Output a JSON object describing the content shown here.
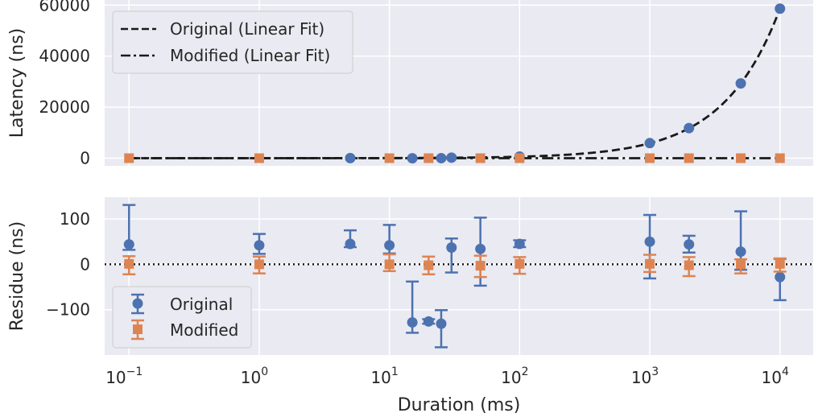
{
  "chart_data": [
    {
      "type": "line",
      "panel": "top",
      "xscale": "log",
      "xlim": [
        0.065,
        18000
      ],
      "ylim": [
        -3000,
        62000
      ],
      "ylabel": "Latency (ns)",
      "yticks": [
        0,
        20000,
        40000,
        60000
      ],
      "ytick_labels": [
        "0",
        "20000",
        "40000",
        "60000"
      ],
      "grid": true,
      "legend_position": "top-left",
      "fit_lines": [
        {
          "name": "Original (Linear Fit)",
          "style": "dashed",
          "color": "#1a1a1a",
          "slope": 5.86,
          "intercept": 0
        },
        {
          "name": "Modified (Linear Fit)",
          "style": "dashdot",
          "color": "#1a1a1a",
          "slope": 0,
          "intercept": 0
        }
      ],
      "series": [
        {
          "name": "Original",
          "marker": "circle",
          "color": "#4c72b0",
          "points": [
            {
              "x": 5,
              "y": 30
            },
            {
              "x": 15,
              "y": -40
            },
            {
              "x": 25,
              "y": 10
            },
            {
              "x": 30,
              "y": 210
            },
            {
              "x": 100,
              "y": 630
            },
            {
              "x": 1000,
              "y": 5900
            },
            {
              "x": 2000,
              "y": 11800
            },
            {
              "x": 5000,
              "y": 29300
            },
            {
              "x": 10000,
              "y": 58600
            }
          ]
        },
        {
          "name": "Modified",
          "marker": "square",
          "color": "#dd8452",
          "points": [
            {
              "x": 0.1,
              "y": 0
            },
            {
              "x": 1,
              "y": 0
            },
            {
              "x": 10,
              "y": 0
            },
            {
              "x": 20,
              "y": 0
            },
            {
              "x": 50,
              "y": 0
            },
            {
              "x": 100,
              "y": 0
            },
            {
              "x": 1000,
              "y": 0
            },
            {
              "x": 2000,
              "y": 0
            },
            {
              "x": 5000,
              "y": 0
            },
            {
              "x": 10000,
              "y": 0
            }
          ]
        }
      ]
    },
    {
      "type": "scatter",
      "panel": "bottom",
      "xscale": "log",
      "xlim": [
        0.065,
        18000
      ],
      "ylim": [
        -200,
        148
      ],
      "xlabel": "Duration (ms)",
      "ylabel": "Residue (ns)",
      "xticks": [
        0.1,
        1,
        10,
        100,
        1000,
        10000
      ],
      "xtick_labels": [
        {
          "base": "10",
          "exp": "−1"
        },
        {
          "base": "10",
          "exp": "0"
        },
        {
          "base": "10",
          "exp": "1"
        },
        {
          "base": "10",
          "exp": "2"
        },
        {
          "base": "10",
          "exp": "3"
        },
        {
          "base": "10",
          "exp": "4"
        }
      ],
      "yticks": [
        -100,
        0,
        100
      ],
      "ytick_labels": [
        "−100",
        "0",
        "100"
      ],
      "zero_line": "dotted",
      "grid": true,
      "legend_position": "bottom-left",
      "series": [
        {
          "name": "Original",
          "marker": "circle",
          "color": "#4c72b0",
          "points": [
            {
              "x": 0.1,
              "y": 44,
              "lo": 32,
              "hi": 131
            },
            {
              "x": 1,
              "y": 42,
              "lo": 23,
              "hi": 67
            },
            {
              "x": 5,
              "y": 45,
              "lo": 38,
              "hi": 75
            },
            {
              "x": 10,
              "y": 42,
              "lo": 24,
              "hi": 87
            },
            {
              "x": 15,
              "y": -128,
              "lo": -151,
              "hi": -38
            },
            {
              "x": 20,
              "y": -126,
              "lo": -131,
              "hi": -121
            },
            {
              "x": 25,
              "y": -131,
              "lo": -183,
              "hi": -101
            },
            {
              "x": 30,
              "y": 37,
              "lo": -18,
              "hi": 57
            },
            {
              "x": 50,
              "y": 34,
              "lo": -47,
              "hi": 103
            },
            {
              "x": 100,
              "y": 45,
              "lo": 38,
              "hi": 53
            },
            {
              "x": 1000,
              "y": 50,
              "lo": -31,
              "hi": 109
            },
            {
              "x": 2000,
              "y": 44,
              "lo": 26,
              "hi": 63
            },
            {
              "x": 5000,
              "y": 28,
              "lo": -12,
              "hi": 117
            },
            {
              "x": 10000,
              "y": -28,
              "lo": -79,
              "hi": 12
            }
          ]
        },
        {
          "name": "Modified",
          "marker": "square",
          "color": "#dd8452",
          "points": [
            {
              "x": 0.1,
              "y": 1,
              "lo": -22,
              "hi": 18
            },
            {
              "x": 1,
              "y": 0,
              "lo": -20,
              "hi": 17
            },
            {
              "x": 10,
              "y": 0,
              "lo": -15,
              "hi": 22
            },
            {
              "x": 20,
              "y": -2,
              "lo": -22,
              "hi": 17
            },
            {
              "x": 50,
              "y": -3,
              "lo": -28,
              "hi": 19
            },
            {
              "x": 100,
              "y": 1,
              "lo": -21,
              "hi": 16
            },
            {
              "x": 1000,
              "y": 1,
              "lo": -17,
              "hi": 21
            },
            {
              "x": 2000,
              "y": -2,
              "lo": -26,
              "hi": 16
            },
            {
              "x": 5000,
              "y": 0,
              "lo": -20,
              "hi": 11
            },
            {
              "x": 10000,
              "y": 1,
              "lo": -16,
              "hi": 13
            }
          ]
        }
      ]
    }
  ]
}
